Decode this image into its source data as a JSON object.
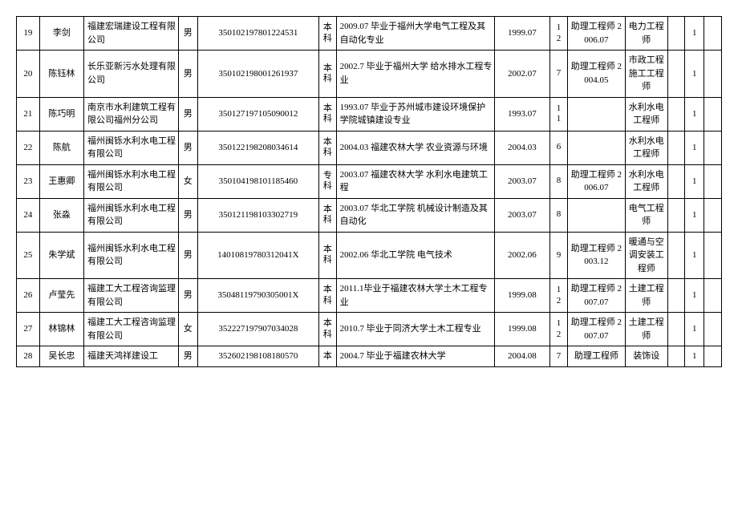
{
  "table": {
    "rows": [
      {
        "idx": "19",
        "name": "李剑",
        "company": "福建宏瑞建设工程有限公司",
        "sex": "男",
        "idnum": "350102197801224531",
        "edu": "本科",
        "desc": "2009.07 毕业于福州大学电气工程及其自动化专业",
        "gdate": "1999.07",
        "years": "12",
        "assist": "助理工程师 2006.07",
        "title": "电力工程师",
        "b1": "",
        "cnt": "1",
        "b2": ""
      },
      {
        "idx": "20",
        "name": "陈钰林",
        "company": "长乐亚新污水处理有限公司",
        "sex": "男",
        "idnum": "350102198001261937",
        "edu": "本科",
        "desc": "2002.7 毕业于福州大学 给水排水工程专业",
        "gdate": "2002.07",
        "years": "7",
        "assist": "助理工程师 2004.05",
        "title": "市政工程施工工程师",
        "b1": "",
        "cnt": "1",
        "b2": ""
      },
      {
        "idx": "21",
        "name": "陈巧明",
        "company": "南京市水利建筑工程有限公司福州分公司",
        "sex": "男",
        "idnum": "350127197105090012",
        "edu": "本科",
        "desc": "1993.07 毕业于苏州城市建设环境保护学院城镇建设专业",
        "gdate": "1993.07",
        "years": "11",
        "assist": "",
        "title": "水利水电工程师",
        "b1": "",
        "cnt": "1",
        "b2": ""
      },
      {
        "idx": "22",
        "name": "陈航",
        "company": "福州闽铄水利水电工程有限公司",
        "sex": "男",
        "idnum": "350122198208034614",
        "edu": "本科",
        "desc": "2004.03 福建农林大学 农业资源与环境",
        "gdate": "2004.03",
        "years": "6",
        "assist": "",
        "title": "水利水电工程师",
        "b1": "",
        "cnt": "1",
        "b2": ""
      },
      {
        "idx": "23",
        "name": "王惠卿",
        "company": "福州闽铄水利水电工程有限公司",
        "sex": "女",
        "idnum": "350104198101185460",
        "edu": "专科",
        "desc": "2003.07 福建农林大学 水利水电建筑工程",
        "gdate": "2003.07",
        "years": "8",
        "assist": "助理工程师 2006.07",
        "title": "水利水电工程师",
        "b1": "",
        "cnt": "1",
        "b2": ""
      },
      {
        "idx": "24",
        "name": "张淼",
        "company": "福州闽铄水利水电工程有限公司",
        "sex": "男",
        "idnum": "350121198103302719",
        "edu": "本科",
        "desc": "2003.07 华北工学院 机械设计制造及其自动化",
        "gdate": "2003.07",
        "years": "8",
        "assist": "",
        "title": "电气工程师",
        "b1": "",
        "cnt": "1",
        "b2": ""
      },
      {
        "idx": "25",
        "name": "朱学斌",
        "company": "福州闽铄水利水电工程有限公司",
        "sex": "男",
        "idnum": "14010819780312041X",
        "edu": "本科",
        "desc": "2002.06 华北工学院 电气技术",
        "gdate": "2002.06",
        "years": "9",
        "assist": "助理工程师 2003.12",
        "title": "暖通与空调安装工程师",
        "b1": "",
        "cnt": "1",
        "b2": ""
      },
      {
        "idx": "26",
        "name": "卢莹先",
        "company": "福建工大工程咨询监理有限公司",
        "sex": "男",
        "idnum": "35048119790305001X",
        "edu": "本科",
        "desc": "2011.1毕业于福建农林大学土木工程专业",
        "gdate": "1999.08",
        "years": "12",
        "assist": "助理工程师 2007.07",
        "title": "土建工程师",
        "b1": "",
        "cnt": "1",
        "b2": ""
      },
      {
        "idx": "27",
        "name": "林锦林",
        "company": "福建工大工程咨询监理有限公司",
        "sex": "女",
        "idnum": "352227197907034028",
        "edu": "本科",
        "desc": "2010.7 毕业于同济大学土木工程专业",
        "gdate": "1999.08",
        "years": "12",
        "assist": "助理工程师 2007.07",
        "title": "土建工程师",
        "b1": "",
        "cnt": "1",
        "b2": ""
      },
      {
        "idx": "28",
        "name": "吴长忠",
        "company": "福建天鸿祥建设工",
        "sex": "男",
        "idnum": "352602198108180570",
        "edu": "本",
        "desc": "2004.7 毕业于福建农林大学",
        "gdate": "2004.08",
        "years": "7",
        "assist": "助理工程师",
        "title": "装饰设",
        "b1": "",
        "cnt": "1",
        "b2": ""
      }
    ]
  }
}
